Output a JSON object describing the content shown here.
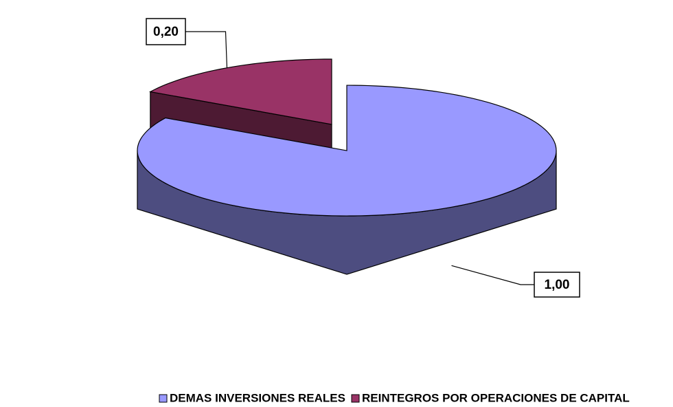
{
  "chart_data": {
    "type": "pie",
    "categories": [
      "DEMAS INVERSIONES REALES",
      "REINTEGROS POR OPERACIONES DE CAPITAL"
    ],
    "values": [
      1.0,
      0.2
    ],
    "value_labels": [
      "1,00",
      "0,20"
    ],
    "colors": [
      "#9999ff",
      "#993366"
    ],
    "legend": "bottom"
  }
}
